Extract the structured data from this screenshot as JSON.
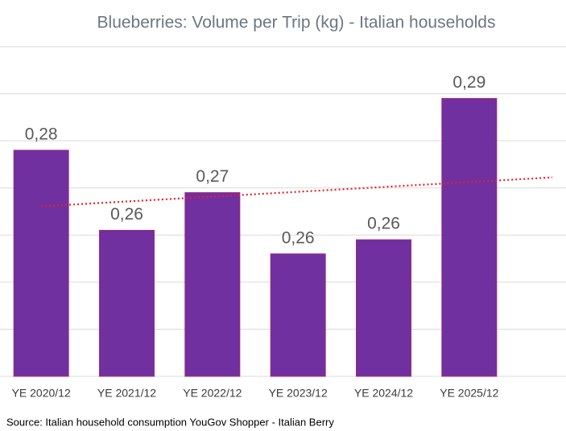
{
  "chart_data": {
    "type": "bar",
    "title": "Blueberries: Volume per Trip (kg) - Italian households",
    "categories": [
      "YE 2020/12",
      "YE 2021/12",
      "YE 2022/12",
      "YE 2023/12",
      "YE 2024/12",
      "YE 2025/12"
    ],
    "values": [
      0.278,
      0.261,
      0.269,
      0.256,
      0.259,
      0.289
    ],
    "value_labels": [
      "0,28",
      "0,26",
      "0,27",
      "0,26",
      "0,26",
      "0,29"
    ],
    "color": "#7030a0",
    "trendline": {
      "type": "linear",
      "color": "#e8202a"
    },
    "ylim": [
      0.23,
      0.3
    ],
    "yticks": [
      0.23,
      0.24,
      0.25,
      0.26,
      0.27,
      0.28,
      0.29,
      0.3
    ],
    "grid": true,
    "source": "Source: Italian household consumption YouGov Shopper - Italian Berry"
  }
}
